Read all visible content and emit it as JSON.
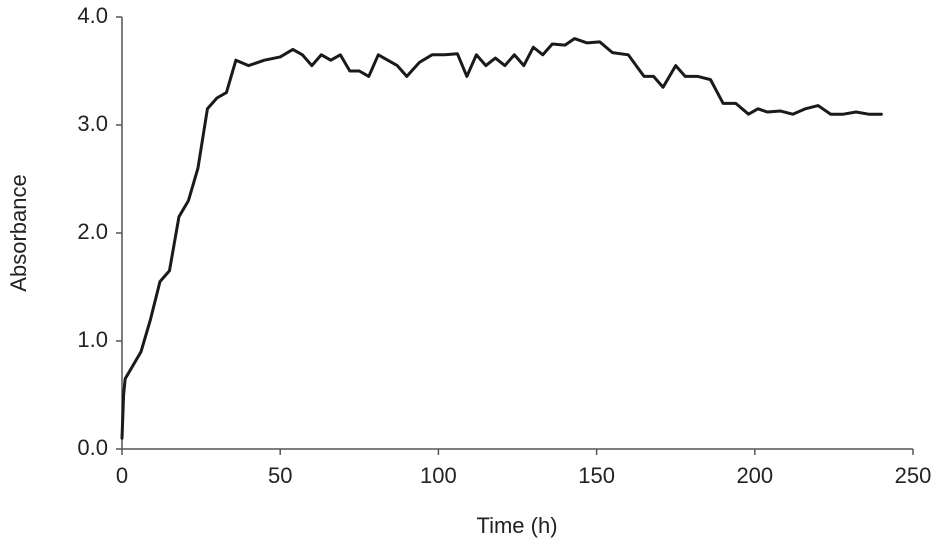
{
  "chart_data": {
    "type": "line",
    "x_label": "Time (h)",
    "y_label": "Absorbance",
    "x": [
      0,
      0.5,
      1,
      3,
      6,
      9,
      12,
      15,
      18,
      21,
      24,
      27,
      30,
      33,
      36,
      40,
      45,
      50,
      54,
      57,
      60,
      63,
      66,
      69,
      72,
      75,
      78,
      81,
      84,
      87,
      90,
      94,
      98,
      102,
      106,
      109,
      112,
      115,
      118,
      121,
      124,
      127,
      130,
      133,
      136,
      140,
      143,
      147,
      151,
      155,
      160,
      165,
      168,
      171,
      175,
      178,
      182,
      186,
      190,
      194,
      198,
      201,
      204,
      208,
      212,
      216,
      220,
      224,
      228,
      232,
      236,
      240
    ],
    "series": [
      {
        "color": "#1a1a1a",
        "values": [
          0.1,
          0.5,
          0.65,
          0.75,
          0.9,
          1.2,
          1.55,
          1.65,
          2.15,
          2.3,
          2.6,
          3.15,
          3.25,
          3.3,
          3.6,
          3.55,
          3.6,
          3.63,
          3.7,
          3.65,
          3.55,
          3.65,
          3.6,
          3.65,
          3.5,
          3.5,
          3.45,
          3.65,
          3.6,
          3.55,
          3.45,
          3.58,
          3.65,
          3.65,
          3.66,
          3.45,
          3.65,
          3.55,
          3.62,
          3.55,
          3.65,
          3.55,
          3.72,
          3.65,
          3.75,
          3.74,
          3.8,
          3.76,
          3.77,
          3.67,
          3.65,
          3.45,
          3.45,
          3.35,
          3.55,
          3.45,
          3.45,
          3.42,
          3.2,
          3.2,
          3.1,
          3.15,
          3.12,
          3.13,
          3.1,
          3.15,
          3.18,
          3.1,
          3.1,
          3.12,
          3.1,
          3.1
        ]
      }
    ],
    "xlim": [
      0,
      250
    ],
    "xticks": [
      0,
      50,
      100,
      150,
      200,
      250
    ],
    "ylim": [
      0,
      4
    ],
    "yticks": [
      {
        "value": 0,
        "label": "0.0"
      },
      {
        "value": 1,
        "label": "1.0"
      },
      {
        "value": 2,
        "label": "2.0"
      },
      {
        "value": 3,
        "label": "3.0"
      },
      {
        "value": 4,
        "label": "4.0"
      }
    ],
    "grid": false
  }
}
